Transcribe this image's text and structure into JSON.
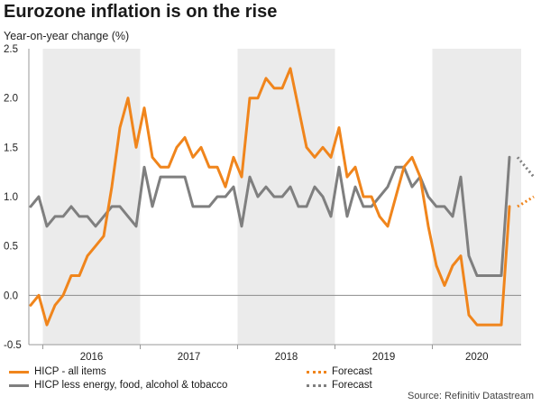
{
  "title": "Eurozone inflation is on the rise",
  "subtitle": "Year-on-year change (%)",
  "source": "Source: Refinitiv Datastream",
  "colors": {
    "hicp": "#f0851c",
    "core": "#7f7f7f",
    "shade": "#ebebeb",
    "zero_line": "#8c8c8c"
  },
  "legend": {
    "hicp_label": "HICP - all items",
    "core_label": "HICP less energy, food, alcohol & tobacco",
    "forecast_label_1": "Forecast",
    "forecast_label_2": "Forecast"
  },
  "chart_data": {
    "type": "line",
    "x_start": "2015-11",
    "x_frequency": "monthly",
    "ylim": [
      -0.5,
      2.5
    ],
    "yticks": [
      "-0.5",
      "0.0",
      "0.5",
      "1.0",
      "1.5",
      "2.0",
      "2.5"
    ],
    "xtick_labels": [
      "2016",
      "2017",
      "2018",
      "2019",
      "2020"
    ],
    "grid": false,
    "shaded_years": [
      "2016",
      "2018",
      "2020"
    ],
    "series": [
      {
        "name": "HICP - all items",
        "color": "#f0851c",
        "values": [
          -0.1,
          0.0,
          -0.3,
          -0.1,
          0.0,
          0.2,
          0.2,
          0.4,
          0.5,
          0.6,
          1.1,
          1.7,
          2.0,
          1.5,
          1.9,
          1.4,
          1.3,
          1.3,
          1.5,
          1.6,
          1.4,
          1.5,
          1.3,
          1.3,
          1.1,
          1.4,
          1.2,
          2.0,
          2.0,
          2.2,
          2.1,
          2.1,
          2.3,
          1.9,
          1.5,
          1.4,
          1.5,
          1.4,
          1.7,
          1.2,
          1.3,
          1.0,
          1.0,
          0.8,
          0.7,
          1.0,
          1.3,
          1.4,
          1.2,
          0.7,
          0.3,
          0.1,
          0.3,
          0.4,
          -0.2,
          -0.3,
          -0.3,
          -0.3,
          -0.3,
          0.9
        ]
      },
      {
        "name": "HICP less energy, food, alcohol & tobacco",
        "color": "#7f7f7f",
        "values": [
          0.9,
          1.0,
          0.7,
          0.8,
          0.8,
          0.9,
          0.8,
          0.8,
          0.7,
          0.8,
          0.9,
          0.9,
          0.8,
          0.7,
          1.3,
          0.9,
          1.2,
          1.2,
          1.2,
          1.2,
          0.9,
          0.9,
          0.9,
          1.0,
          1.0,
          1.1,
          0.7,
          1.2,
          1.0,
          1.1,
          1.0,
          1.0,
          1.1,
          0.9,
          0.9,
          1.1,
          1.0,
          0.8,
          1.3,
          0.8,
          1.1,
          0.9,
          0.9,
          1.0,
          1.1,
          1.3,
          1.3,
          1.1,
          1.2,
          1.0,
          0.9,
          0.9,
          0.8,
          1.2,
          0.4,
          0.2,
          0.2,
          0.2,
          0.2,
          1.4
        ]
      }
    ],
    "forecast": [
      {
        "name": "Forecast",
        "color": "#f0851c",
        "values": [
          0.9,
          0.95,
          1.0
        ]
      },
      {
        "name": "Forecast",
        "color": "#7f7f7f",
        "values": [
          1.4,
          1.3,
          1.2
        ]
      }
    ]
  }
}
